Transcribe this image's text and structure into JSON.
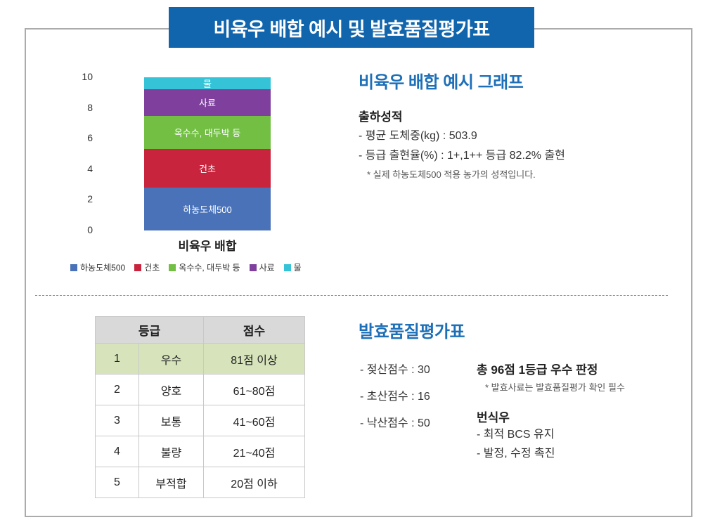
{
  "banner": {
    "title": "비육우 배합 예시 및 발효품질평가표",
    "bg_color": "#1165ac"
  },
  "chart_data": {
    "type": "bar",
    "stacked": true,
    "title": "비육우 배합 예시 그래프",
    "categories": [
      "비육우 배합"
    ],
    "series": [
      {
        "name": "하농도체500",
        "color": "#4a72b8",
        "values": [
          2.8
        ]
      },
      {
        "name": "건초",
        "color": "#c8243d",
        "values": [
          2.5
        ]
      },
      {
        "name": "옥수수, 대두박 등",
        "color": "#72bf44",
        "values": [
          2.2
        ]
      },
      {
        "name": "사료",
        "color": "#7e3f9d",
        "values": [
          1.7
        ]
      },
      {
        "name": "물",
        "color": "#35c4d7",
        "values": [
          0.8
        ]
      }
    ],
    "xlabel": "비육우 배합",
    "ylabel": "",
    "ylim": [
      0,
      10
    ],
    "yticks": [
      0,
      2,
      4,
      6,
      8,
      10
    ],
    "grid": false,
    "legend_position": "bottom"
  },
  "top_right": {
    "heading": "비육우 배합 예시 그래프",
    "subheading": "출하성적",
    "lines": [
      "-  평균 도체중(kg) : 503.9",
      "-  등급 출현율(%) : 1+,1++ 등급 82.2% 출현"
    ],
    "note": "* 실제 하농도체500 적용 농가의 성적입니다."
  },
  "table": {
    "headers": [
      "등급",
      "점수"
    ],
    "rows": [
      {
        "no": "1",
        "grade": "우수",
        "score": "81점 이상",
        "highlight": true
      },
      {
        "no": "2",
        "grade": "양호",
        "score": "61~80점",
        "highlight": false
      },
      {
        "no": "3",
        "grade": "보통",
        "score": "41~60점",
        "highlight": false
      },
      {
        "no": "4",
        "grade": "불량",
        "score": "21~40점",
        "highlight": false
      },
      {
        "no": "5",
        "grade": "부적합",
        "score": "20점 이하",
        "highlight": false
      }
    ]
  },
  "bottom_right": {
    "heading": "발효품질평가표",
    "scores": [
      "-  젖산점수 : 30",
      "-  초산점수 : 16",
      "-  낙산점수 : 50"
    ],
    "verdict": "총 96점 1등급 우수 판정",
    "verdict_note": "* 발효사료는 발효품질평가 확인 필수",
    "breeding_title": "번식우",
    "breeding_lines": [
      "-  최적 BCS 유지",
      "-  발정, 수정 촉진"
    ]
  }
}
